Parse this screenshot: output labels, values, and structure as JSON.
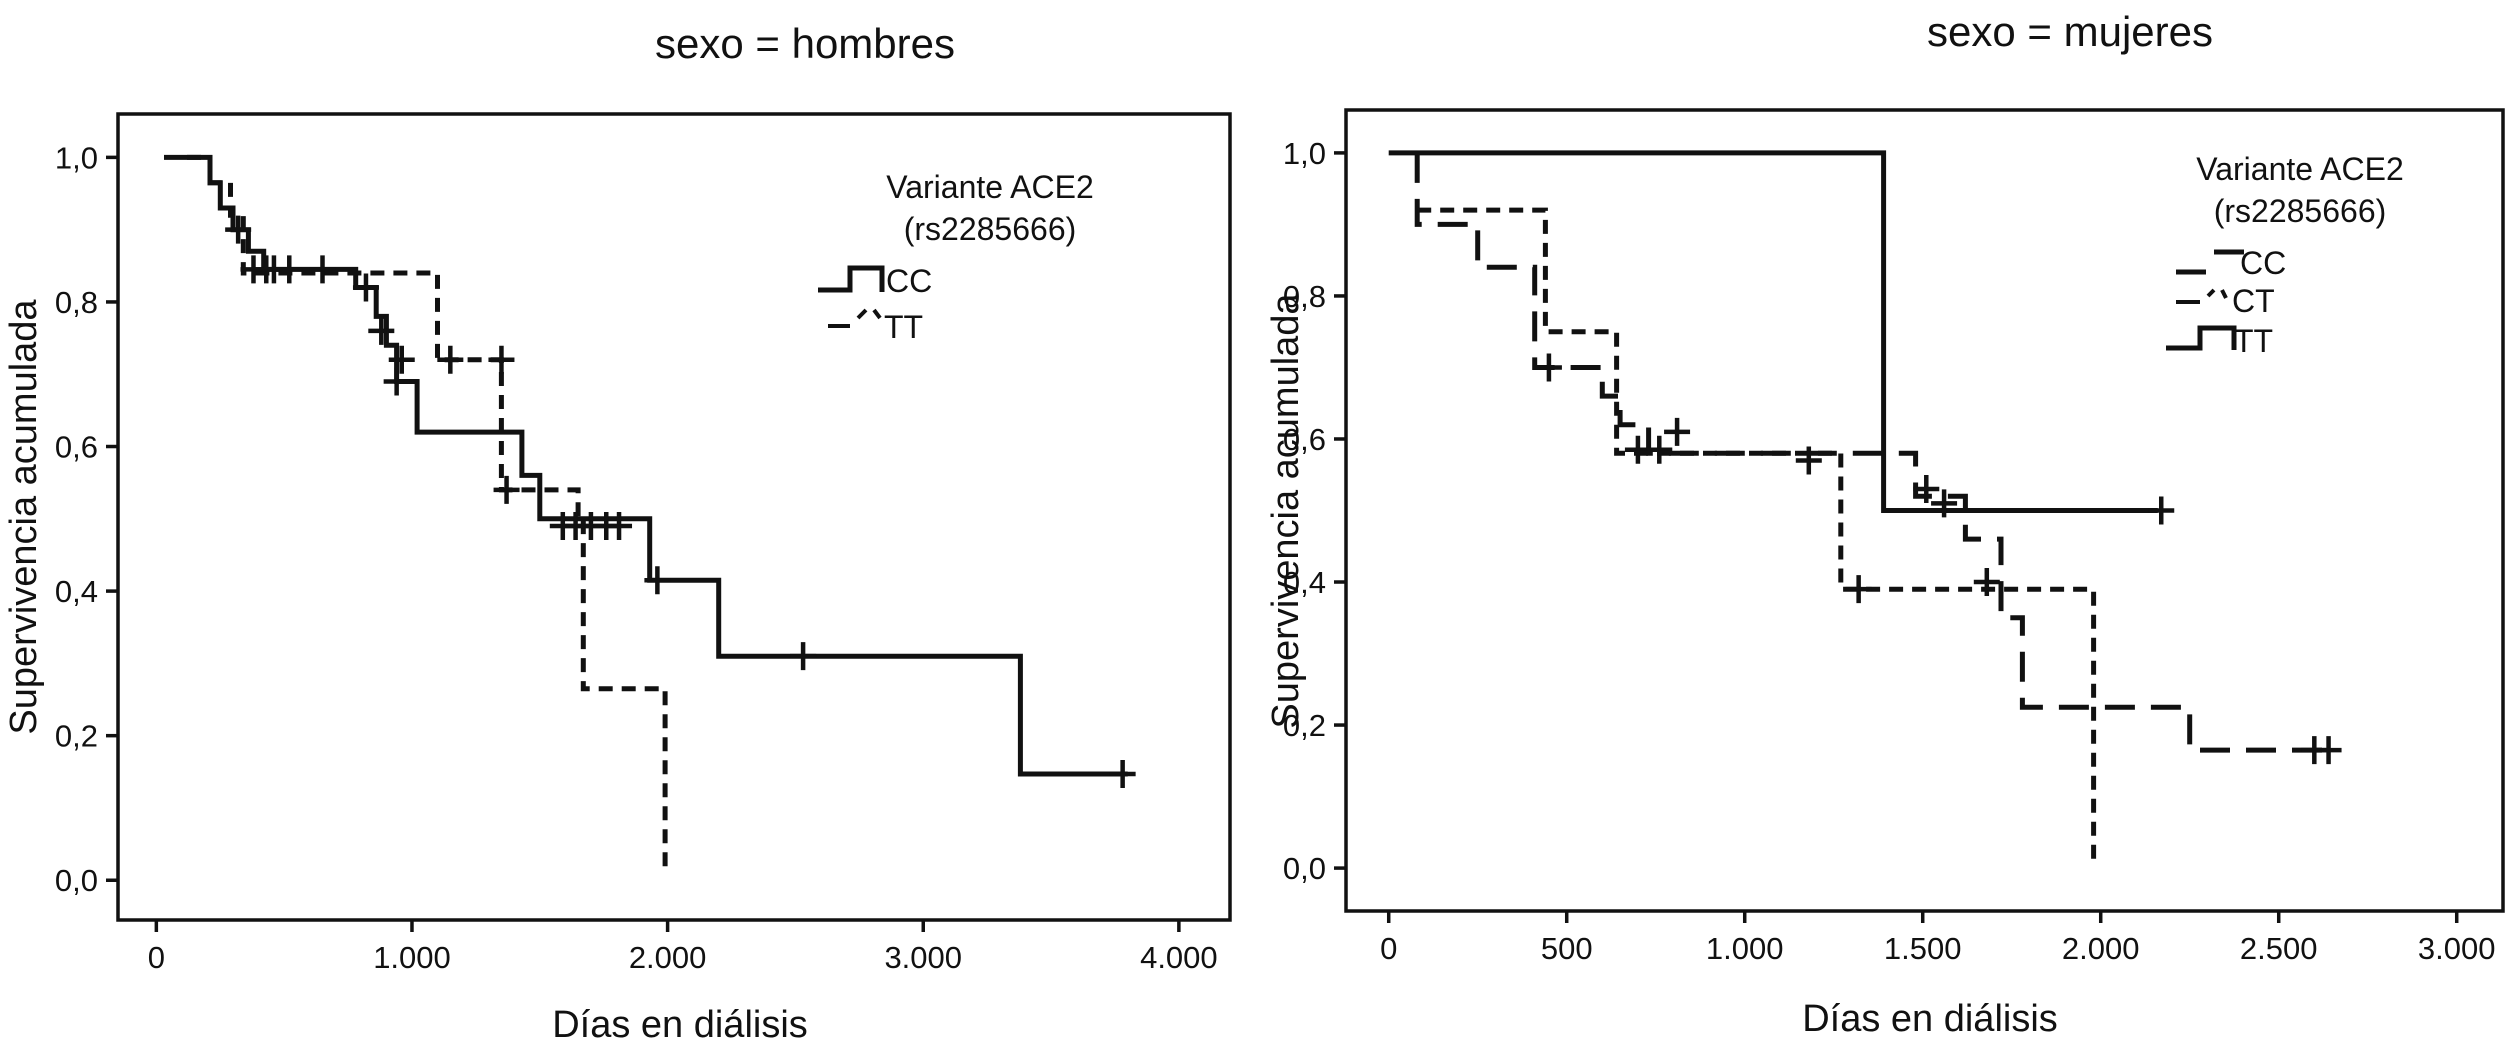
{
  "chart_data": [
    {
      "type": "line",
      "subtype": "kaplan-meier step",
      "title": "sexo = hombres",
      "xlabel": "Días en diálisis",
      "ylabel": "Supervivencia acumulada",
      "xlim": [
        -150,
        4200
      ],
      "ylim": [
        -0.055,
        1.06
      ],
      "x_ticks": [
        0,
        1000,
        2000,
        3000,
        4000
      ],
      "x_tick_labels": [
        "0",
        "1.000",
        "2.000",
        "3.000",
        "4.000"
      ],
      "y_ticks": [
        0,
        0.2,
        0.4,
        0.6,
        0.8,
        1.0
      ],
      "y_tick_labels": [
        "0,0",
        "0,2",
        "0,4",
        "0,6",
        "0,8",
        "1,0"
      ],
      "grid": false,
      "legend_title": [
        "Variante ACE2",
        "(rs2285666)"
      ],
      "legend_position": "top-right",
      "series": [
        {
          "name": "CC",
          "dash": "solid",
          "steps": [
            [
              30,
              1.0
            ],
            [
              210,
              0.965
            ],
            [
              250,
              0.93
            ],
            [
              300,
              0.9
            ],
            [
              360,
              0.87
            ],
            [
              420,
              0.845
            ],
            [
              780,
              0.82
            ],
            [
              860,
              0.78
            ],
            [
              900,
              0.74
            ],
            [
              940,
              0.69
            ],
            [
              1020,
              0.62
            ],
            [
              1430,
              0.56
            ],
            [
              1500,
              0.5
            ],
            [
              1930,
              0.415
            ],
            [
              2200,
              0.31
            ],
            [
              3380,
              0.147
            ],
            [
              3800,
              0.147
            ]
          ],
          "censored": [
            [
              320,
              0.9
            ],
            [
              460,
              0.845
            ],
            [
              520,
              0.845
            ],
            [
              650,
              0.845
            ],
            [
              820,
              0.82
            ],
            [
              940,
              0.69
            ],
            [
              2530,
              0.31
            ],
            [
              3780,
              0.147
            ]
          ]
        },
        {
          "name": "TT",
          "dash": "dashed",
          "steps": [
            [
              120,
              1.0
            ],
            [
              210,
              0.965
            ],
            [
              290,
              0.92
            ],
            [
              340,
              0.84
            ],
            [
              780,
              0.84
            ],
            [
              1100,
              0.72
            ],
            [
              1350,
              0.54
            ],
            [
              1500,
              0.54
            ],
            [
              1650,
              0.5
            ],
            [
              1670,
              0.265
            ],
            [
              1990,
              0.265
            ],
            [
              1990,
              0.015
            ]
          ],
          "censored": [
            [
              380,
              0.845
            ],
            [
              430,
              0.845
            ],
            [
              880,
              0.76
            ],
            [
              960,
              0.72
            ],
            [
              1150,
              0.72
            ],
            [
              1350,
              0.72
            ],
            [
              1370,
              0.54
            ],
            [
              1590,
              0.49
            ],
            [
              1640,
              0.49
            ],
            [
              1700,
              0.49
            ],
            [
              1760,
              0.49
            ],
            [
              1810,
              0.49
            ],
            [
              1960,
              0.415
            ]
          ]
        }
      ]
    },
    {
      "type": "line",
      "subtype": "kaplan-meier step",
      "title": "sexo = mujeres",
      "xlabel": "Días en diálisis",
      "ylabel": "Supervivencia acumulada",
      "xlim": [
        -120,
        3130
      ],
      "ylim": [
        -0.06,
        1.06
      ],
      "x_ticks": [
        0,
        500,
        1000,
        1500,
        2000,
        2500,
        3000
      ],
      "x_tick_labels": [
        "0",
        "500",
        "1.000",
        "1.500",
        "2.000",
        "2.500",
        "3.000"
      ],
      "y_ticks": [
        0,
        0.2,
        0.4,
        0.6,
        0.8,
        1.0
      ],
      "y_tick_labels": [
        "0,0",
        "0,2",
        "0,4",
        "0,6",
        "0,8",
        "1,0"
      ],
      "grid": false,
      "legend_title": [
        "Variante ACE2",
        "(rs2285666)"
      ],
      "legend_position": "top-right",
      "series": [
        {
          "name": "CC",
          "dash": "long-dash",
          "steps": [
            [
              80,
              1.0
            ],
            [
              80,
              0.9
            ],
            [
              250,
              0.84
            ],
            [
              410,
              0.7
            ],
            [
              600,
              0.66
            ],
            [
              650,
              0.62
            ],
            [
              730,
              0.58
            ],
            [
              1250,
              0.58
            ],
            [
              1480,
              0.52
            ],
            [
              1620,
              0.46
            ],
            [
              1720,
              0.35
            ],
            [
              1780,
              0.225
            ],
            [
              2240,
              0.225
            ],
            [
              2250,
              0.165
            ],
            [
              2640,
              0.165
            ]
          ],
          "censored": [
            [
              450,
              0.7
            ],
            [
              700,
              0.585
            ],
            [
              760,
              0.585
            ],
            [
              810,
              0.61
            ],
            [
              1180,
              0.57
            ],
            [
              2600,
              0.165
            ],
            [
              2640,
              0.165
            ]
          ]
        },
        {
          "name": "CT",
          "dash": "dashed",
          "steps": [
            [
              80,
              0.92
            ],
            [
              200,
              0.92
            ],
            [
              440,
              0.75
            ],
            [
              520,
              0.75
            ],
            [
              640,
              0.58
            ],
            [
              1240,
              0.58
            ],
            [
              1270,
              0.39
            ],
            [
              1980,
              0.39
            ],
            [
              1980,
              0.01
            ]
          ],
          "censored": [
            [
              1320,
              0.39
            ],
            [
              1680,
              0.4
            ]
          ]
        },
        {
          "name": "TT",
          "dash": "solid",
          "steps": [
            [
              0,
              1.0
            ],
            [
              1390,
              1.0
            ],
            [
              1390,
              0.5
            ],
            [
              2160,
              0.5
            ]
          ],
          "censored": [
            [
              1510,
              0.53
            ],
            [
              1560,
              0.51
            ],
            [
              2170,
              0.5
            ]
          ]
        }
      ]
    }
  ]
}
